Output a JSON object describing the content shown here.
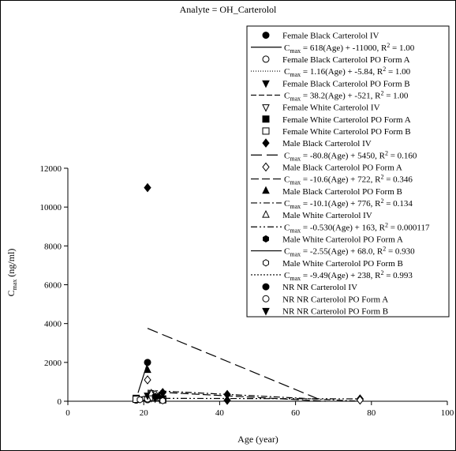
{
  "chart_data": {
    "type": "scatter",
    "title": "Analyte = OH_Carterolol",
    "xlabel": "Age (year)",
    "ylabel_main": "C",
    "ylabel_sub": "max",
    "ylabel_unit": " (ng/ml)",
    "xlim": [
      0,
      100
    ],
    "ylim": [
      0,
      12000
    ],
    "xticks": [
      0,
      20,
      40,
      60,
      80,
      100
    ],
    "yticks": [
      0,
      2000,
      4000,
      6000,
      8000,
      10000,
      12000
    ],
    "grid": false,
    "legend_position": "top-right",
    "series": [
      {
        "name": "Female Black  Carterolol IV",
        "marker": "circle-filled",
        "points": [
          [
            21,
            2000
          ],
          [
            21,
            100
          ]
        ],
        "fit": {
          "label": "= 618(Age) + -11000, R",
          "r2": " = 1.00",
          "dash": "none",
          "x": [
            18.5,
            21.3
          ]
        }
      },
      {
        "name": "Female Black  Carterolol PO Form A",
        "marker": "circle-open",
        "points": [
          [
            18,
            60
          ],
          [
            21,
            80
          ],
          [
            21,
            120
          ]
        ],
        "fit": {
          "label": "= 1.16(Age) + -5.84, R",
          "r2": " = 1.00",
          "dash": "1,2",
          "x": [
            18,
            21
          ]
        }
      },
      {
        "name": "Female Black  Carterolol PO Form B",
        "marker": "triangle-down-filled",
        "points": [
          [
            21,
            300
          ],
          [
            22,
            320
          ],
          [
            23,
            150
          ]
        ],
        "fit": {
          "label": "= 38.2(Age) + -521, R",
          "r2": " = 1.00",
          "dash": "7,3",
          "x": [
            19,
            23
          ]
        }
      },
      {
        "name": "Female White  Carterolol IV",
        "marker": "triangle-down-open",
        "points": [
          [
            22,
            180
          ]
        ]
      },
      {
        "name": "Female White  Carterolol PO Form A",
        "marker": "square-filled",
        "points": [
          [
            18,
            150
          ],
          [
            25,
            120
          ]
        ]
      },
      {
        "name": "Female White  Carterolol PO Form B",
        "marker": "square-open",
        "points": [
          [
            18,
            100
          ],
          [
            25,
            70
          ]
        ]
      },
      {
        "name": "Male Black  Carterolol IV",
        "marker": "diamond-filled",
        "points": [
          [
            21,
            11000
          ],
          [
            25,
            450
          ],
          [
            42,
            350
          ],
          [
            42,
            50
          ],
          [
            77,
            120
          ]
        ],
        "fit": {
          "label": "= -80.8(Age) + 5450, R",
          "r2": " = 0.160",
          "dash": "14,6",
          "x": [
            21,
            66
          ]
        }
      },
      {
        "name": "Male Black  Carterolol PO Form A",
        "marker": "diamond-open",
        "points": [
          [
            21,
            1100
          ],
          [
            23,
            350
          ],
          [
            24,
            200
          ],
          [
            77,
            60
          ]
        ],
        "fit": {
          "label": "= -10.6(Age) + 722, R",
          "r2": " = 0.346",
          "dash": "10,4",
          "x": [
            21,
            68
          ]
        }
      },
      {
        "name": "Male Black  Carterolol PO Form B",
        "marker": "triangle-up-filled",
        "points": [
          [
            21,
            1600
          ],
          [
            24,
            250
          ],
          [
            25,
            200
          ]
        ],
        "fit": {
          "label": "= -10.1(Age) + 776, R",
          "r2": " = 0.134",
          "dash": "8,3,2,3",
          "x": [
            21,
            77
          ]
        }
      },
      {
        "name": "Male White  Carterolol IV",
        "marker": "triangle-up-open",
        "points": [
          [
            22,
            400
          ]
        ],
        "fit": {
          "label": "= -0.530(Age) + 163, R",
          "r2": " = 0.000117",
          "dash": "8,3,2,3,2,3",
          "x": [
            21,
            77
          ]
        }
      },
      {
        "name": "Male White  Carterolol PO Form A",
        "marker": "hexagon-filled",
        "points": [
          [
            23,
            250
          ],
          [
            25,
            50
          ]
        ],
        "fit": {
          "label": "= -2.55(Age) + 68.0, R",
          "r2": " = 0.930",
          "dash": "none",
          "x": [
            20,
            25
          ]
        }
      },
      {
        "name": "Male White  Carterolol PO Form B",
        "marker": "hexagon-open",
        "points": [
          [
            19,
            80
          ],
          [
            25,
            30
          ]
        ],
        "fit": {
          "label": "= -9.49(Age) + 238, R",
          "r2": " = 0.993",
          "dash": "2,2",
          "x": [
            19,
            25
          ]
        }
      },
      {
        "name": "NR NR  Carterolol IV",
        "marker": "circle-filled"
      },
      {
        "name": "NR NR  Carterolol PO Form A",
        "marker": "circle-open"
      },
      {
        "name": "NR NR  Carterolol PO Form B",
        "marker": "triangle-down-filled"
      }
    ]
  }
}
